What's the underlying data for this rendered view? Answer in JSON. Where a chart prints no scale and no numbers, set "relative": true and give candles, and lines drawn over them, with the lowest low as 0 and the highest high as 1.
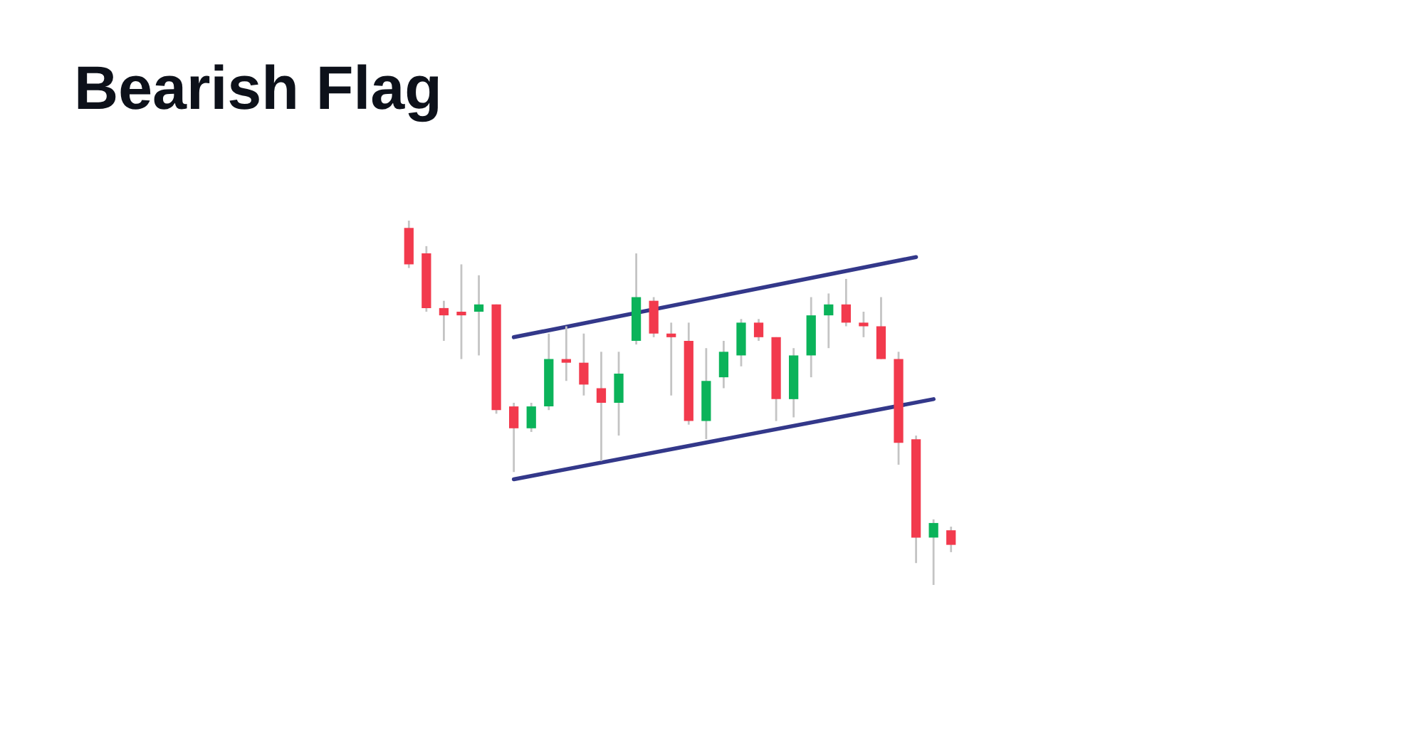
{
  "chart_data": {
    "type": "candlestick",
    "title": "Bearish Flag",
    "relative": true,
    "grid": false,
    "legend": false,
    "categories": [
      null,
      null,
      null,
      null,
      null,
      null,
      null,
      null,
      null,
      null,
      null,
      null,
      null,
      null,
      null,
      null,
      null,
      null,
      null,
      null,
      null,
      null,
      null,
      null,
      null,
      null,
      null,
      null,
      null,
      null,
      null,
      null
    ],
    "ohlc": [
      [
        0.98,
        1.0,
        0.87,
        0.88
      ],
      [
        0.91,
        0.93,
        0.75,
        0.76
      ],
      [
        0.76,
        0.78,
        0.67,
        0.74
      ],
      [
        0.75,
        0.88,
        0.62,
        0.74
      ],
      [
        0.75,
        0.85,
        0.63,
        0.77
      ],
      [
        0.77,
        0.77,
        0.47,
        0.48
      ],
      [
        0.49,
        0.5,
        0.31,
        0.43
      ],
      [
        0.43,
        0.5,
        0.42,
        0.49
      ],
      [
        0.49,
        0.69,
        0.48,
        0.62
      ],
      [
        0.62,
        0.71,
        0.56,
        0.61
      ],
      [
        0.61,
        0.69,
        0.52,
        0.55
      ],
      [
        0.54,
        0.64,
        0.34,
        0.5
      ],
      [
        0.5,
        0.64,
        0.41,
        0.58
      ],
      [
        0.67,
        0.91,
        0.66,
        0.79
      ],
      [
        0.78,
        0.79,
        0.68,
        0.69
      ],
      [
        0.69,
        0.72,
        0.52,
        0.68
      ],
      [
        0.67,
        0.72,
        0.44,
        0.45
      ],
      [
        0.45,
        0.65,
        0.4,
        0.56
      ],
      [
        0.57,
        0.67,
        0.54,
        0.64
      ],
      [
        0.63,
        0.73,
        0.6,
        0.72
      ],
      [
        0.72,
        0.73,
        0.67,
        0.68
      ],
      [
        0.68,
        0.68,
        0.45,
        0.51
      ],
      [
        0.51,
        0.65,
        0.46,
        0.63
      ],
      [
        0.63,
        0.79,
        0.57,
        0.74
      ],
      [
        0.74,
        0.8,
        0.65,
        0.77
      ],
      [
        0.77,
        0.84,
        0.71,
        0.72
      ],
      [
        0.72,
        0.75,
        0.68,
        0.71
      ],
      [
        0.71,
        0.79,
        0.62,
        0.62
      ],
      [
        0.62,
        0.64,
        0.33,
        0.39
      ],
      [
        0.4,
        0.41,
        0.06,
        0.13
      ],
      [
        0.13,
        0.18,
        0.0,
        0.17
      ],
      [
        0.15,
        0.16,
        0.09,
        0.11
      ]
    ],
    "colors": [
      "#f23a4d",
      "#f23a4d",
      "#f23a4d",
      "#f23a4d",
      "#0bb35a",
      "#f23a4d",
      "#f23a4d",
      "#0bb35a",
      "#0bb35a",
      "#f23a4d",
      "#f23a4d",
      "#f23a4d",
      "#0bb35a",
      "#0bb35a",
      "#f23a4d",
      "#f23a4d",
      "#f23a4d",
      "#0bb35a",
      "#0bb35a",
      "#0bb35a",
      "#f23a4d",
      "#f23a4d",
      "#0bb35a",
      "#0bb35a",
      "#0bb35a",
      "#f23a4d",
      "#f23a4d",
      "#f23a4d",
      "#f23a4d",
      "#f23a4d",
      "#0bb35a",
      "#f23a4d"
    ],
    "series": [
      {
        "type": "line",
        "values": [
          null,
          null,
          null,
          null,
          null,
          null,
          0.68,
          null,
          null,
          null,
          null,
          null,
          null,
          null,
          null,
          null,
          null,
          null,
          null,
          null,
          null,
          null,
          null,
          null,
          null,
          null,
          null,
          null,
          null,
          0.9,
          null,
          null
        ],
        "color": "#33388a"
      },
      {
        "type": "line",
        "values": [
          null,
          null,
          null,
          null,
          null,
          null,
          0.29,
          null,
          null,
          null,
          null,
          null,
          null,
          null,
          null,
          null,
          null,
          null,
          null,
          null,
          null,
          null,
          null,
          null,
          null,
          null,
          null,
          null,
          null,
          null,
          0.51,
          null
        ],
        "color": "#33388a"
      }
    ],
    "marker": "none",
    "line_style": "solid"
  }
}
